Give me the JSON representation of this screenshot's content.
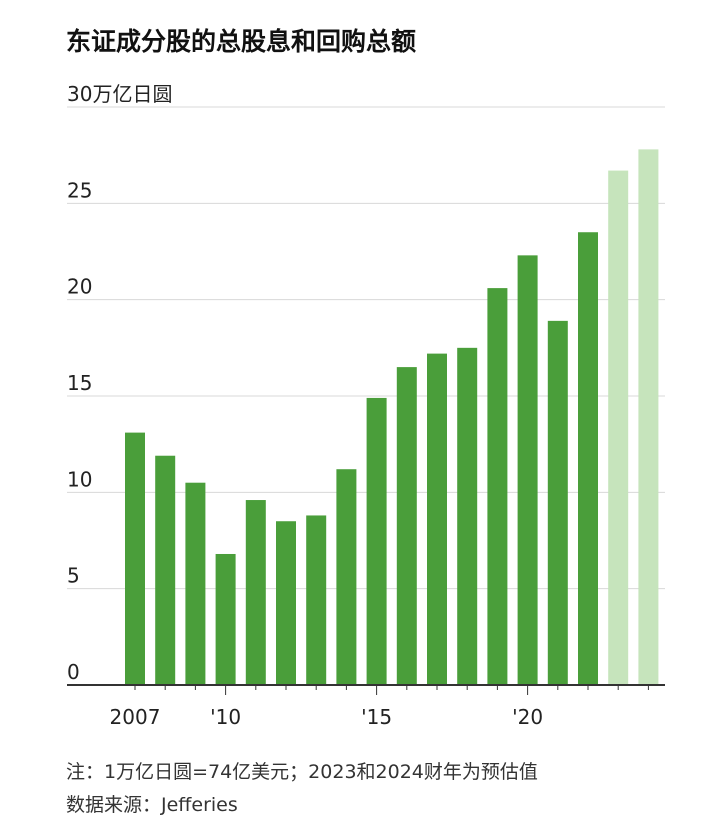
{
  "chart_data": {
    "type": "bar",
    "title": "东证成分股的总股息和回购总额",
    "ylabel": "30万亿日圆",
    "ylim": [
      0,
      30
    ],
    "yticks": [
      0,
      5,
      10,
      15,
      20,
      25
    ],
    "grid": true,
    "categories": [
      "2007",
      "2008",
      "2009",
      "2010",
      "2011",
      "2012",
      "2013",
      "2014",
      "2015",
      "2016",
      "2017",
      "2018",
      "2019",
      "2020",
      "2021",
      "2022",
      "2023",
      "2024"
    ],
    "xtick_labels": {
      "2007": "2007",
      "2010": "'10",
      "2015": "'15",
      "2020": "'20"
    },
    "values": [
      13.1,
      11.9,
      10.5,
      6.8,
      9.6,
      8.5,
      8.8,
      11.2,
      14.9,
      16.5,
      17.2,
      17.5,
      20.6,
      22.3,
      18.9,
      23.5,
      26.7,
      27.8
    ],
    "estimated": [
      "2023",
      "2024"
    ],
    "colors": {
      "actual": "#4a9e3a",
      "estimate": "#c6e4bc",
      "grid": "#d8d8d8",
      "axis": "#333333"
    }
  },
  "notes": {
    "note": "注：1万亿日圆=74亿美元；2023和2024财年为预估值",
    "source": "数据来源：Jefferies"
  }
}
